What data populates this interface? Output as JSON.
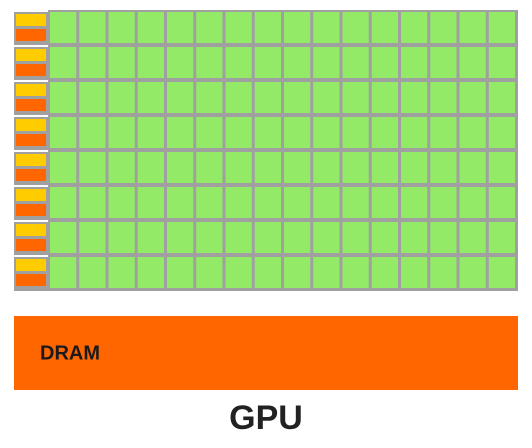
{
  "dram": {
    "label": "DRAM"
  },
  "caption": "GPU"
}
